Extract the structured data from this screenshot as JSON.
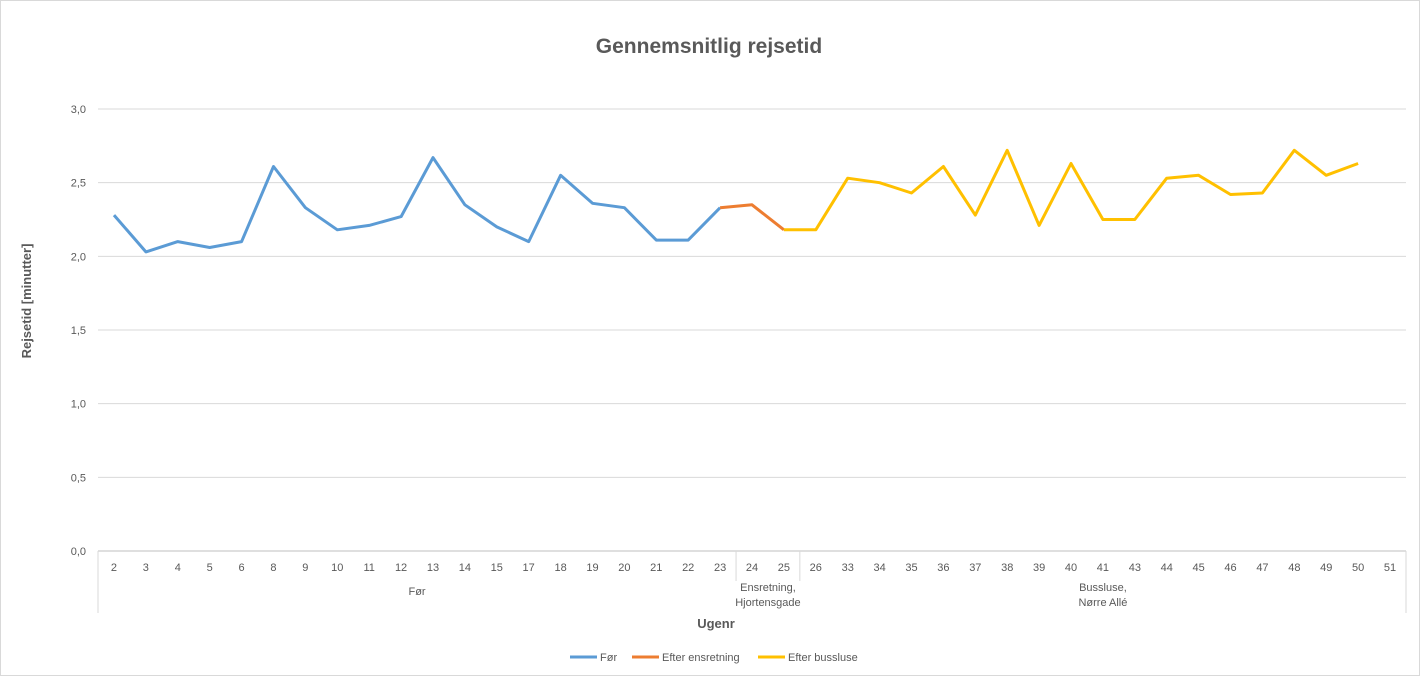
{
  "chart_data": {
    "type": "line",
    "title": "Gennemsnitlig rejsetid",
    "xlabel": "Ugenr",
    "ylabel": "Rejsetid [minutter]",
    "ylim": [
      0,
      3.0
    ],
    "yticks": [
      "0,0",
      "0,5",
      "1,0",
      "1,5",
      "2,0",
      "2,5",
      "3,0"
    ],
    "grid": true,
    "legend_position": "bottom",
    "categories": [
      "2",
      "3",
      "4",
      "5",
      "6",
      "8",
      "9",
      "10",
      "11",
      "12",
      "13",
      "14",
      "15",
      "17",
      "18",
      "19",
      "20",
      "21",
      "22",
      "23",
      "24",
      "25",
      "26",
      "33",
      "34",
      "35",
      "36",
      "37",
      "38",
      "39",
      "40",
      "41",
      "43",
      "44",
      "45",
      "46",
      "47",
      "48",
      "49",
      "50",
      "51"
    ],
    "groups": [
      {
        "label": "Før",
        "count": 20
      },
      {
        "label": "Ensretning,\nHjortensgade",
        "count": 2
      },
      {
        "label": "Bussluse,\nNørre Allé",
        "count": 19
      }
    ],
    "series": [
      {
        "name": "Før",
        "color": "#5B9BD5",
        "values": [
          2.28,
          2.03,
          2.1,
          2.06,
          2.1,
          2.61,
          2.33,
          2.18,
          2.21,
          2.27,
          2.67,
          2.35,
          2.2,
          2.1,
          2.55,
          2.36,
          2.33,
          2.11,
          2.11,
          2.33,
          null,
          null,
          null,
          null,
          null,
          null,
          null,
          null,
          null,
          null,
          null,
          null,
          null,
          null,
          null,
          null,
          null,
          null,
          null,
          null,
          null
        ]
      },
      {
        "name": "Efter ensretning",
        "color": "#ED7D31",
        "values": [
          null,
          null,
          null,
          null,
          null,
          null,
          null,
          null,
          null,
          null,
          null,
          null,
          null,
          null,
          null,
          null,
          null,
          null,
          null,
          2.33,
          2.35,
          2.18,
          null,
          null,
          null,
          null,
          null,
          null,
          null,
          null,
          null,
          null,
          null,
          null,
          null,
          null,
          null,
          null,
          null,
          null,
          null
        ]
      },
      {
        "name": "Efter bussluse",
        "color": "#FFC000",
        "values": [
          null,
          null,
          null,
          null,
          null,
          null,
          null,
          null,
          null,
          null,
          null,
          null,
          null,
          null,
          null,
          null,
          null,
          null,
          null,
          null,
          null,
          2.18,
          2.18,
          2.53,
          2.5,
          2.43,
          2.61,
          2.28,
          2.72,
          2.21,
          2.63,
          2.25,
          2.25,
          2.53,
          2.55,
          2.42,
          2.43,
          2.72,
          2.55,
          2.63,
          null
        ]
      }
    ]
  }
}
